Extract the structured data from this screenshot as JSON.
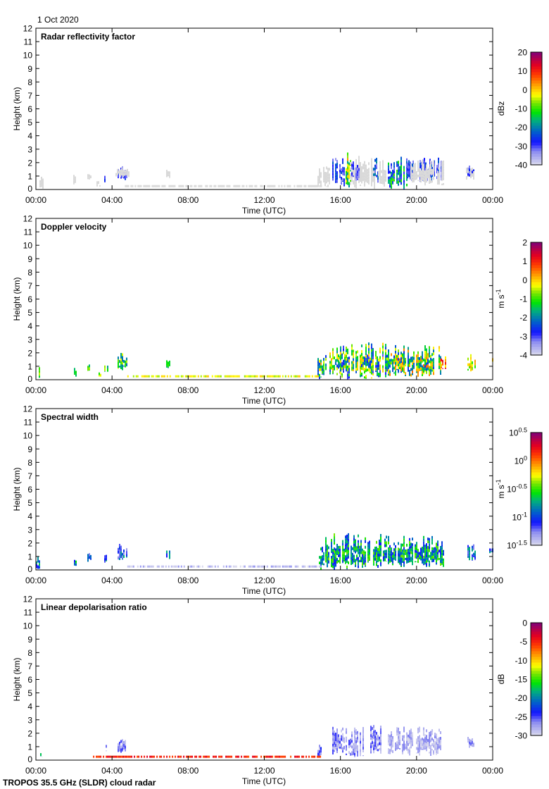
{
  "date_label": "1 Oct 2020",
  "footer": "TROPOS 35.5 GHz (SLDR) cloud radar",
  "chart_data": [
    {
      "type": "heatmap",
      "title": "Radar reflectivity factor",
      "xlabel": "Time (UTC)",
      "ylabel": "Height (km)",
      "xlim": [
        0,
        24
      ],
      "ylim": [
        0,
        12
      ],
      "xticks": [
        "00:00",
        "04:00",
        "08:00",
        "12:00",
        "16:00",
        "20:00",
        "00:00"
      ],
      "yticks": [
        "0",
        "1",
        "2",
        "3",
        "4",
        "5",
        "6",
        "7",
        "8",
        "9",
        "10",
        "11",
        "12"
      ],
      "colorbar": {
        "unit": "dBz",
        "unit_sup": "",
        "range": [
          -40,
          20
        ],
        "labels": [
          "20",
          "10",
          "0",
          "-10",
          "-20",
          "-30",
          "-40"
        ],
        "label_sup": []
      },
      "clutter_color": "#d9d9d9",
      "low_line": {
        "t0": 4.6,
        "t1": 15.0,
        "height": 0.25,
        "value": null
      },
      "echoes": [
        [
          0.2,
          0.35,
          0.0,
          1.0,
          null,
          0
        ],
        [
          1.9,
          2.1,
          0.3,
          1.2,
          null,
          0
        ],
        [
          2.7,
          2.9,
          0.6,
          1.3,
          null,
          0
        ],
        [
          3.2,
          3.4,
          0.1,
          0.8,
          null,
          0
        ],
        [
          3.6,
          3.7,
          0.5,
          1.2,
          -30,
          6
        ],
        [
          4.3,
          4.8,
          0.7,
          1.8,
          -30,
          6
        ],
        [
          4.2,
          4.9,
          0.9,
          1.7,
          null,
          0
        ],
        [
          6.85,
          7.0,
          0.8,
          1.6,
          null,
          0
        ],
        [
          14.8,
          15.0,
          0.0,
          1.8,
          null,
          0
        ],
        [
          15.1,
          15.4,
          0.1,
          1.9,
          null,
          0
        ],
        [
          15.5,
          16.2,
          0.2,
          2.5,
          -28,
          6
        ],
        [
          16.3,
          16.5,
          0.0,
          2.8,
          -8,
          12
        ],
        [
          16.5,
          17.8,
          0.0,
          2.5,
          null,
          0
        ],
        [
          16.6,
          17.0,
          0.6,
          2.2,
          -30,
          5
        ],
        [
          17.75,
          17.95,
          0.5,
          2.8,
          -25,
          8
        ],
        [
          18.0,
          18.4,
          0.2,
          2.2,
          null,
          0
        ],
        [
          18.5,
          19.5,
          0.0,
          2.5,
          -20,
          12
        ],
        [
          19.5,
          21.3,
          0.5,
          2.4,
          -28,
          6
        ],
        [
          19.7,
          21.4,
          0.3,
          2.2,
          null,
          0
        ],
        [
          22.7,
          23.0,
          0.8,
          1.8,
          -30,
          5
        ],
        [
          22.6,
          23.1,
          0.7,
          1.9,
          null,
          0
        ]
      ]
    },
    {
      "type": "heatmap",
      "title": "Doppler velocity",
      "xlabel": "Time (UTC)",
      "ylabel": "Height (km)",
      "xlim": [
        0,
        24
      ],
      "ylim": [
        0,
        12
      ],
      "xticks": [
        "00:00",
        "04:00",
        "08:00",
        "12:00",
        "16:00",
        "20:00",
        "00:00"
      ],
      "yticks": [
        "0",
        "1",
        "2",
        "3",
        "4",
        "5",
        "6",
        "7",
        "8",
        "9",
        "10",
        "11",
        "12"
      ],
      "colorbar": {
        "unit": "m s",
        "unit_sup": "-1",
        "range": [
          -4,
          2
        ],
        "labels": [
          "2",
          "1",
          "0",
          "-1",
          "-2",
          "-3",
          "-4"
        ],
        "label_sup": []
      },
      "low_line": {
        "t0": 4.8,
        "t1": 15.0,
        "height": 0.25,
        "value": -0.3
      },
      "echoes": [
        [
          0.0,
          0.15,
          0.0,
          1.0,
          -1,
          0.6
        ],
        [
          2.0,
          2.1,
          0.2,
          1.0,
          -1.5,
          0.6
        ],
        [
          2.7,
          2.9,
          0.6,
          1.3,
          -1.2,
          0.8
        ],
        [
          3.3,
          3.4,
          0.1,
          0.7,
          -0.8,
          0.6
        ],
        [
          3.6,
          3.75,
          0.5,
          1.3,
          -1.0,
          0.8
        ],
        [
          4.3,
          4.8,
          0.7,
          2.0,
          -1.2,
          1.0
        ],
        [
          6.85,
          7.0,
          0.7,
          1.6,
          -1.5,
          0.8
        ],
        [
          14.8,
          15.1,
          0.0,
          1.8,
          -1.2,
          1.5
        ],
        [
          15.2,
          16.0,
          0.3,
          2.4,
          -1.3,
          1.5
        ],
        [
          16.0,
          18.5,
          0.0,
          2.8,
          -1.5,
          1.6
        ],
        [
          18.5,
          21.3,
          0.2,
          2.6,
          -1.0,
          1.6
        ],
        [
          21.3,
          21.5,
          0.6,
          2.0,
          0.5,
          0.8
        ],
        [
          22.7,
          23.1,
          0.6,
          1.9,
          -0.5,
          0.8
        ],
        [
          23.9,
          24.0,
          1.2,
          1.8,
          -0.5,
          0.6
        ]
      ]
    },
    {
      "type": "heatmap",
      "title": "Spectral width",
      "xlabel": "Time (UTC)",
      "ylabel": "Height (km)",
      "xlim": [
        0,
        24
      ],
      "ylim": [
        0,
        12
      ],
      "xticks": [
        "00:00",
        "04:00",
        "08:00",
        "12:00",
        "16:00",
        "20:00",
        "00:00"
      ],
      "yticks": [
        "0",
        "1",
        "2",
        "3",
        "4",
        "5",
        "6",
        "7",
        "8",
        "9",
        "10",
        "11",
        "12"
      ],
      "colorbar": {
        "unit": "m s",
        "unit_sup": "-1",
        "range": [
          -1.5,
          0.5
        ],
        "labels": [
          "10",
          "10",
          "10",
          "10",
          "10"
        ],
        "label_sup": [
          "0.5",
          "0",
          "-0.5",
          "-1",
          "-1.5"
        ]
      },
      "low_line": {
        "t0": 4.8,
        "t1": 15.0,
        "height": 0.25,
        "value": -1.4
      },
      "echoes": [
        [
          0.0,
          0.15,
          0.0,
          1.0,
          -0.9,
          0.3
        ],
        [
          2.0,
          2.1,
          0.2,
          1.0,
          -0.8,
          0.3
        ],
        [
          2.7,
          2.9,
          0.6,
          1.3,
          -1.0,
          0.3
        ],
        [
          3.6,
          3.75,
          0.5,
          1.3,
          -0.9,
          0.3
        ],
        [
          4.3,
          4.8,
          0.7,
          2.0,
          -1.0,
          0.3
        ],
        [
          6.85,
          7.0,
          0.7,
          1.6,
          -0.9,
          0.3
        ],
        [
          14.8,
          15.1,
          0.0,
          1.8,
          -0.9,
          0.35
        ],
        [
          15.2,
          18.5,
          0.0,
          2.8,
          -0.75,
          0.35
        ],
        [
          18.5,
          21.4,
          0.2,
          2.6,
          -0.75,
          0.35
        ],
        [
          22.7,
          23.1,
          0.6,
          2.0,
          -1.0,
          0.3
        ],
        [
          23.85,
          24.0,
          1.2,
          1.8,
          -1.0,
          0.3
        ]
      ]
    },
    {
      "type": "heatmap",
      "title": "Linear depolarisation ratio",
      "xlabel": "Time (UTC)",
      "ylabel": "Height (km)",
      "xlim": [
        0,
        24
      ],
      "ylim": [
        0,
        12
      ],
      "xticks": [
        "00:00",
        "04:00",
        "08:00",
        "12:00",
        "16:00",
        "20:00",
        "00:00"
      ],
      "yticks": [
        "0",
        "1",
        "2",
        "3",
        "4",
        "5",
        "6",
        "7",
        "8",
        "9",
        "10",
        "11",
        "12"
      ],
      "colorbar": {
        "unit": "dB",
        "unit_sup": "",
        "range": [
          -30,
          0
        ],
        "labels": [
          "0",
          "-5",
          "-10",
          "-15",
          "-20",
          "-25",
          "-30"
        ],
        "label_sup": []
      },
      "low_line": {
        "t0": 3.0,
        "t1": 15.0,
        "height": 0.25,
        "value": -5
      },
      "echoes": [
        [
          0.15,
          0.3,
          0.2,
          0.6,
          -15,
          6
        ],
        [
          3.6,
          3.7,
          0.6,
          1.2,
          -27,
          2
        ],
        [
          4.3,
          4.8,
          0.5,
          1.8,
          -27,
          2.5
        ],
        [
          14.8,
          15.0,
          0.1,
          1.2,
          -26,
          3
        ],
        [
          15.5,
          16.3,
          0.3,
          2.6,
          -27,
          2.5
        ],
        [
          16.3,
          17.2,
          0.2,
          2.5,
          -27,
          2.5
        ],
        [
          17.6,
          18.2,
          0.4,
          2.8,
          -27,
          2.5
        ],
        [
          18.5,
          21.3,
          0.3,
          2.5,
          -28,
          2
        ],
        [
          22.7,
          23.0,
          0.9,
          1.8,
          -27,
          2
        ]
      ]
    }
  ]
}
